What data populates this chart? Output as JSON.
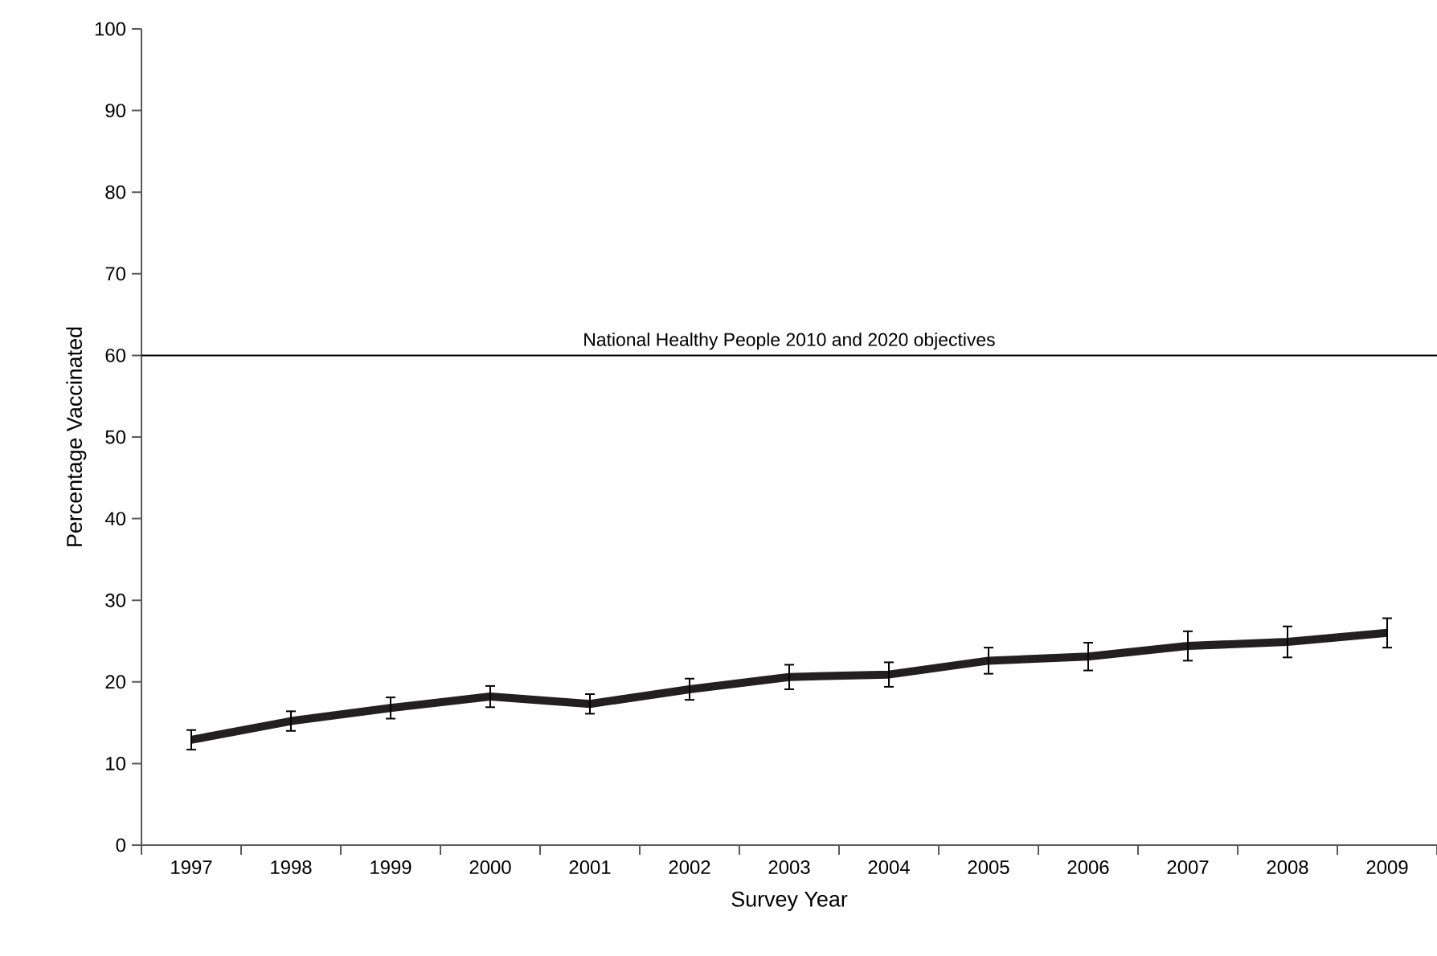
{
  "chart_data": {
    "type": "line",
    "xlabel": "Survey Year",
    "ylabel": "Percentage Vaccinated",
    "categories": [
      "1997",
      "1998",
      "1999",
      "2000",
      "2001",
      "2002",
      "2003",
      "2004",
      "2005",
      "2006",
      "2007",
      "2008",
      "2009"
    ],
    "values": [
      12.9,
      15.2,
      16.8,
      18.2,
      17.3,
      19.1,
      20.6,
      20.9,
      22.6,
      23.1,
      24.4,
      24.9,
      26.0
    ],
    "errors": [
      1.2,
      1.2,
      1.3,
      1.3,
      1.2,
      1.3,
      1.5,
      1.5,
      1.6,
      1.7,
      1.8,
      1.9,
      1.8
    ],
    "color": "#231f20",
    "ylim": [
      0,
      100
    ],
    "yticks": [
      0,
      10,
      20,
      30,
      40,
      50,
      60,
      70,
      80,
      90,
      100
    ],
    "ref_lines": [
      {
        "axis": "y",
        "value": 60,
        "label": "National Healthy People 2010 and 2020 objectives",
        "color": "#000000"
      }
    ]
  }
}
